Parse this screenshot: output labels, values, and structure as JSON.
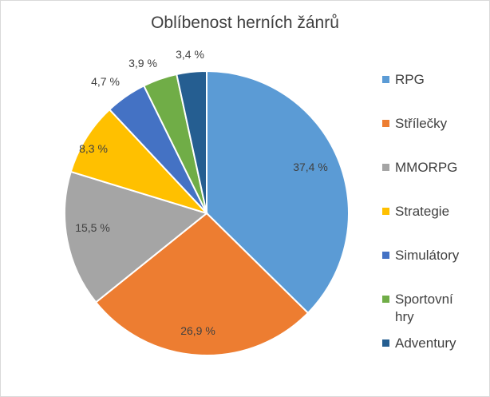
{
  "chart_data": {
    "type": "pie",
    "title": "Oblíbenost herních žánrů",
    "categories": [
      "RPG",
      "Střílečky",
      "MMORPG",
      "Strategie",
      "Simulátory",
      "Sportovní hry",
      "Adventury"
    ],
    "values": [
      37.4,
      26.9,
      15.5,
      8.3,
      4.7,
      3.9,
      3.4
    ],
    "labels": [
      "37,4 %",
      "26,9 %",
      "15,5 %",
      "8,3 %",
      "4,7 %",
      "3,9 %",
      "3,4 %"
    ],
    "colors": [
      "#5b9bd5",
      "#ed7d31",
      "#a5a5a5",
      "#ffc000",
      "#4472c4",
      "#70ad47",
      "#255e91"
    ],
    "legend_position": "right"
  }
}
